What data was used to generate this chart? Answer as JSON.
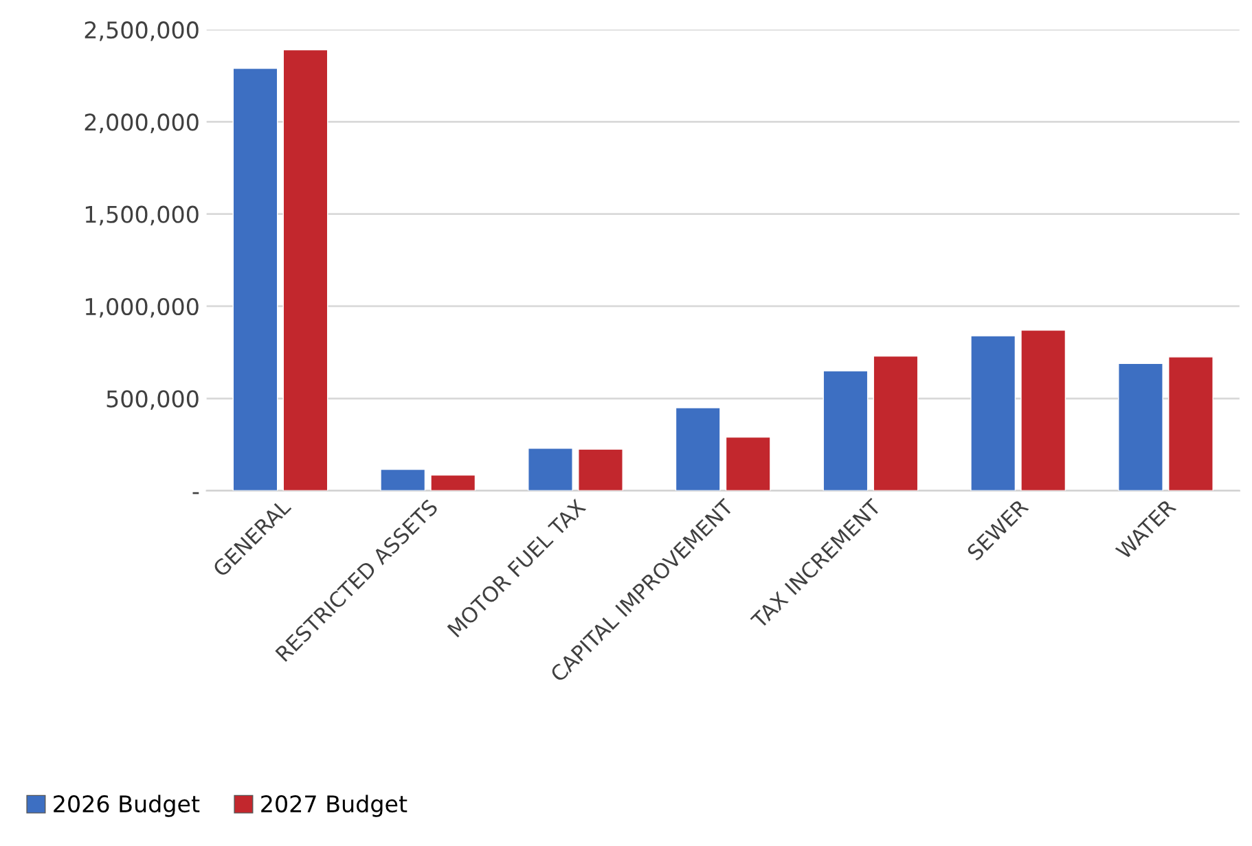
{
  "chart_data": {
    "type": "bar",
    "categories": [
      "GENERAL",
      "RESTRICTED ASSETS",
      "MOTOR FUEL TAX",
      "CAPITAL IMPROVEMENT",
      "TAX INCREMENT",
      "SEWER",
      "WATER"
    ],
    "series": [
      {
        "name": "2026 Budget",
        "color": "#3d6fc2",
        "values": [
          2290000,
          115000,
          230000,
          450000,
          650000,
          840000,
          690000
        ]
      },
      {
        "name": "2027 Budget",
        "color": "#c2272d",
        "values": [
          2390000,
          85000,
          225000,
          290000,
          730000,
          870000,
          725000
        ]
      }
    ],
    "ylim": [
      0,
      2500000
    ],
    "yticks": [
      {
        "value": 0,
        "label": "-"
      },
      {
        "value": 500000,
        "label": "500,000"
      },
      {
        "value": 1000000,
        "label": "1,000,000"
      },
      {
        "value": 1500000,
        "label": "1,500,000"
      },
      {
        "value": 2000000,
        "label": "2,000,000"
      },
      {
        "value": 2500000,
        "label": "2,500,000"
      }
    ],
    "grid": "y",
    "legend": "bottom left"
  }
}
